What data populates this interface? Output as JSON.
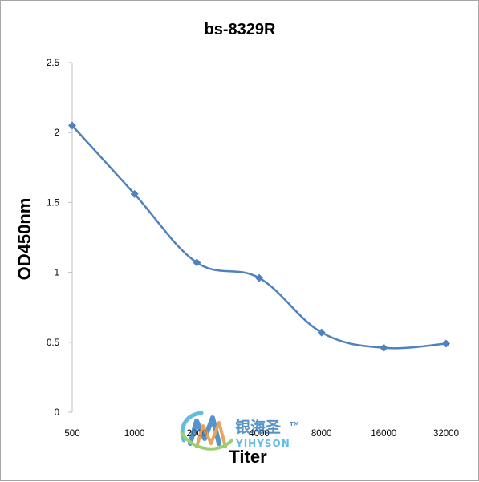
{
  "chart_data": {
    "type": "line",
    "title": "bs-8329R",
    "xlabel": "Titer",
    "ylabel": "OD450nm",
    "categories": [
      "500",
      "1000",
      "2000",
      "4000",
      "8000",
      "16000",
      "32000"
    ],
    "series": [
      {
        "values": [
          2.05,
          1.56,
          1.07,
          0.96,
          0.57,
          0.46,
          0.49
        ]
      }
    ],
    "ylim": [
      0,
      2.5
    ],
    "yticks": [
      "0",
      "0.5",
      "1",
      "1.5",
      "2",
      "2.5"
    ],
    "grid": false,
    "legend": "none",
    "line_color": "#4f81bd",
    "marker": "diamond"
  },
  "watermark": {
    "cn": "银海圣",
    "en": "YIHYSON",
    "tm": "TM"
  }
}
